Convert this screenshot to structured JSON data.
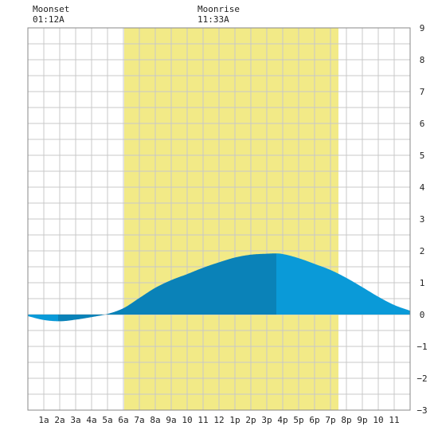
{
  "chart_data": {
    "type": "area",
    "title": "",
    "xlabel": "",
    "ylabel": "",
    "xlim": [
      0,
      24
    ],
    "ylim": [
      -3,
      9
    ],
    "grid": true,
    "x_tick_labels": [
      "1a",
      "2a",
      "3a",
      "4a",
      "5a",
      "6a",
      "7a",
      "8a",
      "9a",
      "10",
      "11",
      "12",
      "1p",
      "2p",
      "3p",
      "4p",
      "5p",
      "6p",
      "7p",
      "8p",
      "9p",
      "10",
      "11"
    ],
    "y_ticks": [
      -3,
      -2,
      -1,
      0,
      1,
      2,
      3,
      4,
      5,
      6,
      7,
      8,
      9
    ],
    "moon_events": [
      {
        "label": "Moonset",
        "time": "01:12A",
        "hour": 1.2
      },
      {
        "label": "Moonrise",
        "time": "11:33A",
        "hour": 11.55
      }
    ],
    "daylight": {
      "start_hour": 6.05,
      "end_hour": 19.5,
      "color": "#f2ea87"
    },
    "tide_extremes": [
      {
        "hour": 1.9,
        "height": -0.22
      },
      {
        "hour": 15.6,
        "height": 1.92
      }
    ],
    "series": [
      {
        "x": [
          0,
          1,
          2,
          3,
          4,
          5,
          6,
          7,
          8,
          9,
          10,
          11,
          12,
          13,
          14,
          15,
          15.6,
          16,
          17,
          18,
          19,
          20,
          21,
          22,
          23,
          24
        ],
        "y": [
          -0.05,
          -0.17,
          -0.21,
          -0.16,
          -0.08,
          0.02,
          0.2,
          0.52,
          0.84,
          1.08,
          1.27,
          1.47,
          1.64,
          1.79,
          1.88,
          1.91,
          1.92,
          1.9,
          1.77,
          1.59,
          1.4,
          1.15,
          0.86,
          0.56,
          0.3,
          0.12
        ]
      }
    ],
    "colors": {
      "dark": "#0a82b8",
      "light": "#0a9ad8",
      "grid": "#c8c8c8",
      "axis": "#888888"
    }
  }
}
